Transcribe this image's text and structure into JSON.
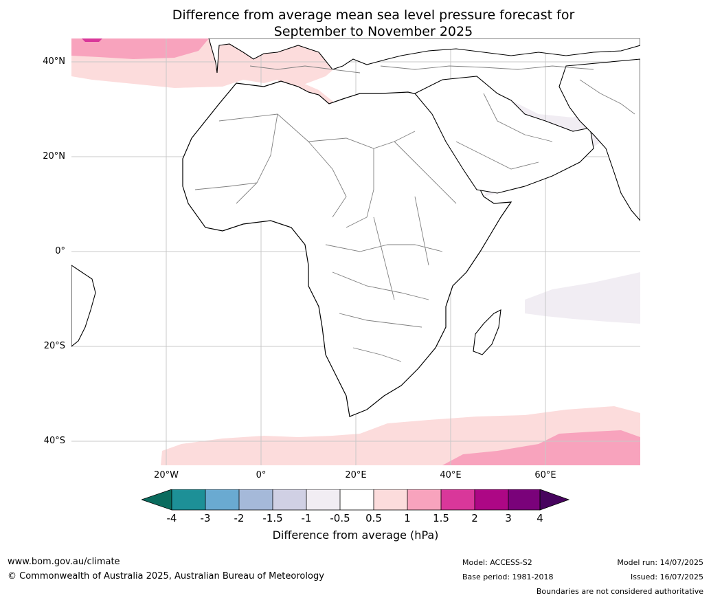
{
  "title": {
    "line1": "Difference from average mean sea level pressure forecast for",
    "line2": "September to November 2025"
  },
  "map": {
    "lat_labels": [
      "40°N",
      "20°N",
      "0°",
      "20°S",
      "40°S"
    ],
    "lon_labels": [
      "20°W",
      "0°",
      "20°E",
      "40°E",
      "60°E"
    ],
    "colors": {
      "pink_light": "#fcdcdc",
      "pink_mid": "#f8a3bd",
      "magenta": "#d9379a",
      "lavender_light": "#f1edf3",
      "lavender": "#d0d0e4",
      "blue": "#6aaad1",
      "border": "#808080",
      "coast": "#000000",
      "grid": "#c8c8c8"
    }
  },
  "colorbar": {
    "ticks": [
      "-4",
      "-3",
      "-2",
      "-1.5",
      "-1",
      "-0.5",
      "0.5",
      "1",
      "1.5",
      "2",
      "3",
      "4"
    ],
    "colors": [
      "#1d9097",
      "#6aaad1",
      "#a5b9d9",
      "#d0d0e4",
      "#f1edf3",
      "#ffffff",
      "#fcdcdc",
      "#f8a3bd",
      "#d9379a",
      "#ad0785",
      "#7a027a"
    ],
    "under_color": "#0a6b5e",
    "over_color": "#47045e",
    "label": "Difference from average (hPa)"
  },
  "footer": {
    "website": "www.bom.gov.au/climate",
    "copyright": "© Commonwealth of Australia 2025, Australian Bureau of Meteorology",
    "model": "Model: ACCESS-S2",
    "base_period": "Base period: 1981-2018",
    "model_run": "Model run: 14/07/2025",
    "issued": "Issued: 16/07/2025",
    "disclaimer": "Boundaries are not considered authoritative"
  }
}
